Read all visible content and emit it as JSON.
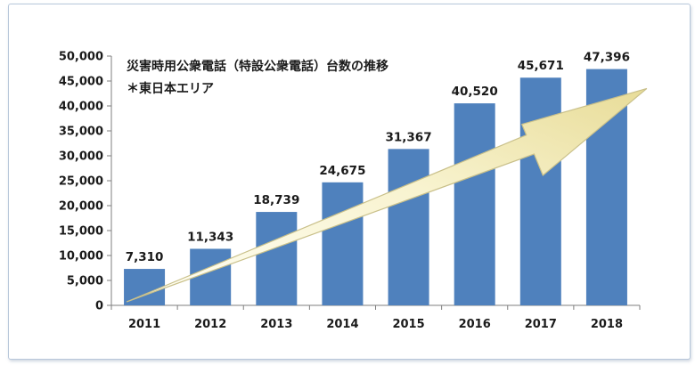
{
  "chart_data": {
    "type": "bar",
    "title": "災害時用公衆電話（特設公衆電話）台数の推移",
    "subtitle": "＊東日本エリア",
    "categories": [
      "2011",
      "2012",
      "2013",
      "2014",
      "2015",
      "2016",
      "2017",
      "2018"
    ],
    "values": [
      7310,
      11343,
      18739,
      24675,
      31367,
      40520,
      45671,
      47396
    ],
    "data_labels": [
      "7,310",
      "11,343",
      "18,739",
      "24,675",
      "31,367",
      "40,520",
      "45,671",
      "47,396"
    ],
    "y_ticks": [
      "0",
      "5,000",
      "10,000",
      "15,000",
      "20,000",
      "25,000",
      "30,000",
      "35,000",
      "40,000",
      "45,000",
      "50,000"
    ],
    "ylim": [
      0,
      50000
    ],
    "xlabel": "",
    "ylabel": "",
    "grid": false,
    "legend": "none",
    "colors": {
      "bar": "#4f81bd",
      "arrow_fill_light": "#fdfcea",
      "arrow_fill_dark": "#ece3a4",
      "arrow_stroke": "#c9c08a",
      "axis": "#7f7f7f"
    },
    "annotations": [
      {
        "type": "trend-arrow",
        "from_category": "2011",
        "to_category": "2018",
        "direction": "increasing"
      }
    ]
  }
}
